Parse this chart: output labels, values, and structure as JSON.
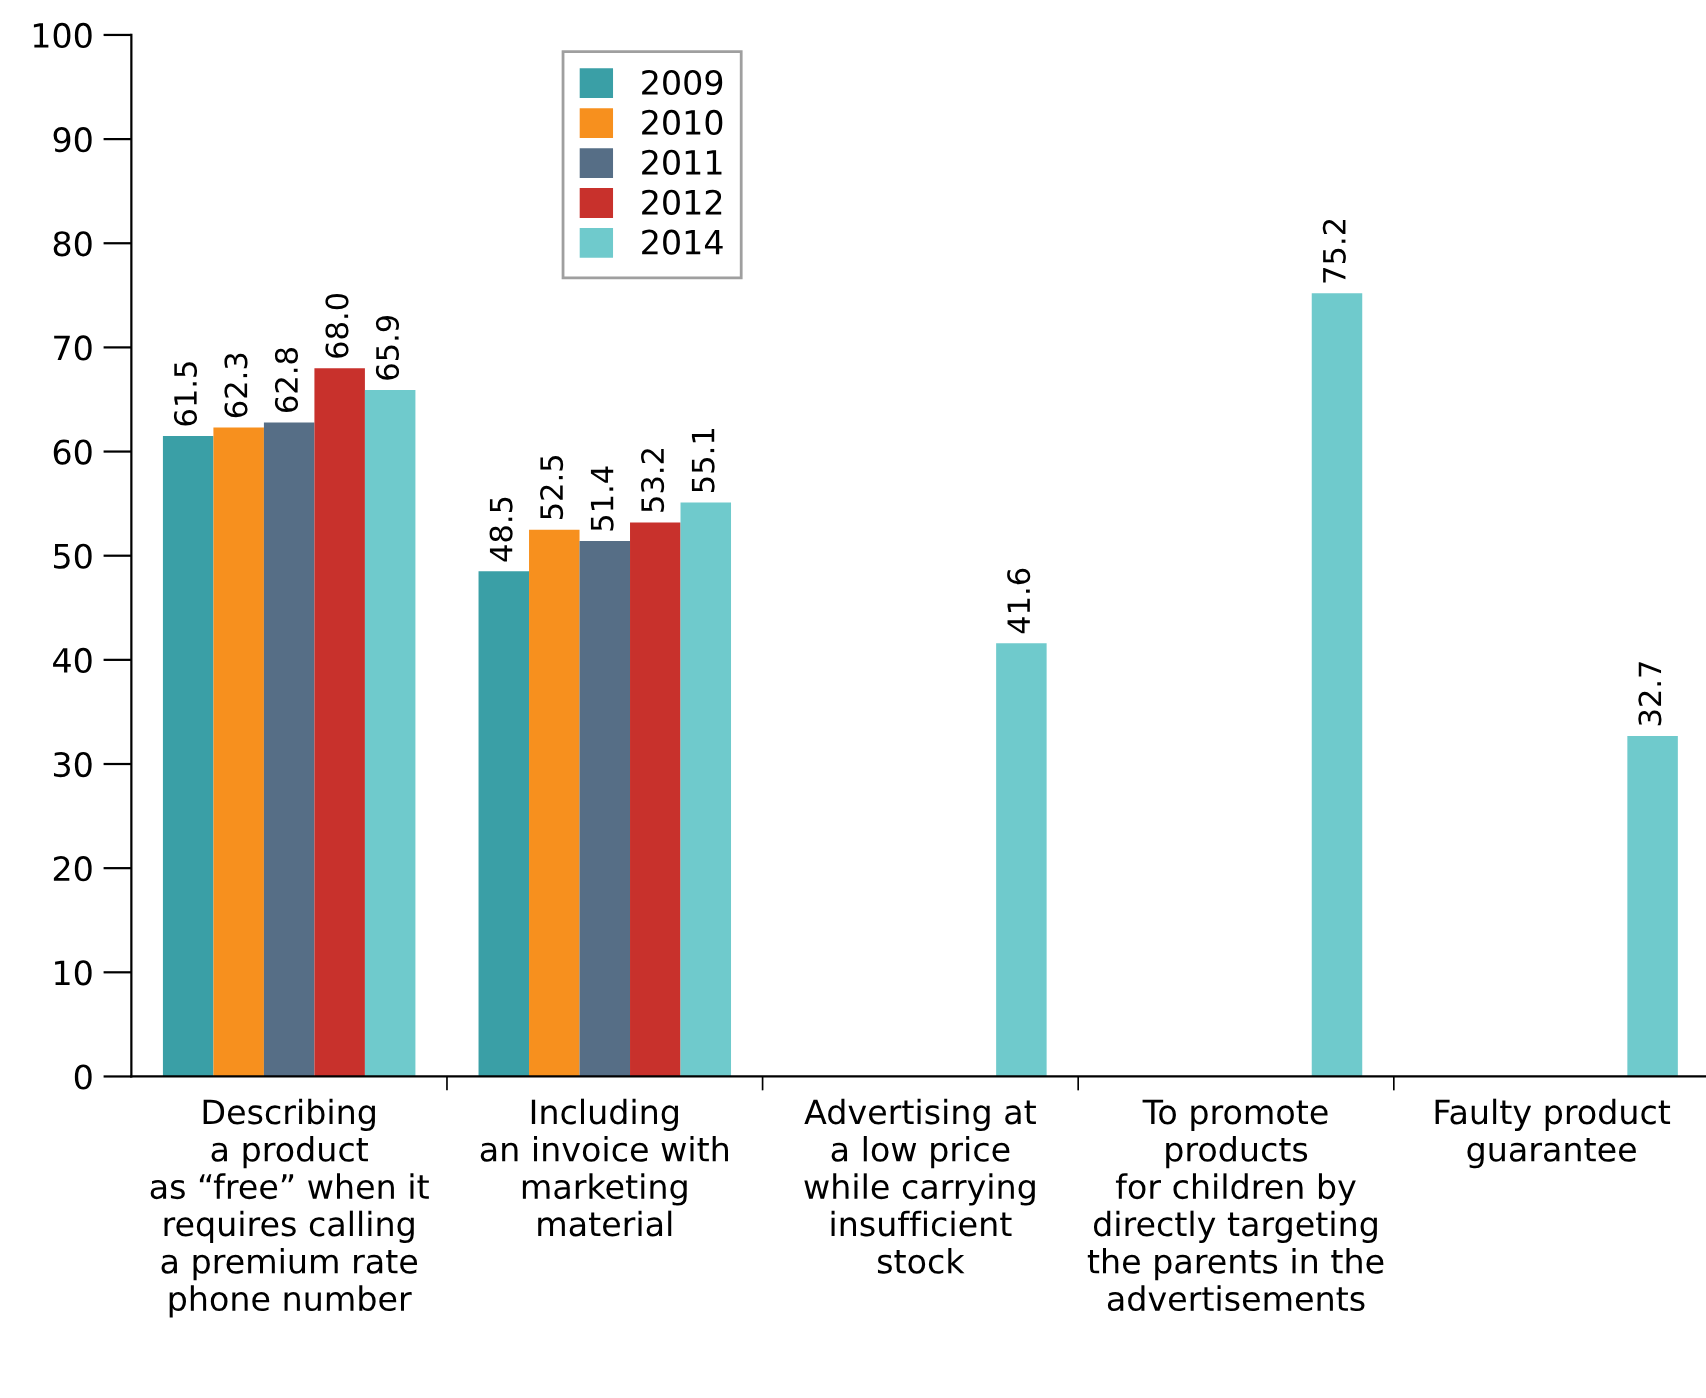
{
  "chart_data": {
    "type": "bar",
    "categories": [
      "Describing\na product\nas “free” when it\nrequires calling\na premium rate\nphone number",
      "Including\nan invoice with\nmarketing\nmaterial",
      "Advertising at\na low price\nwhile carrying\ninsufficient\nstock",
      "To promote\nproducts\nfor children by\ndirectly targeting\nthe parents in the\nadvertisements",
      "Faulty product\nguarantee"
    ],
    "series": [
      {
        "name": "2009",
        "color": "#3a9fa6",
        "values": [
          61.5,
          48.5,
          null,
          null,
          null
        ]
      },
      {
        "name": "2010",
        "color": "#f7901e",
        "values": [
          62.3,
          52.5,
          null,
          null,
          null
        ]
      },
      {
        "name": "2011",
        "color": "#566e86",
        "values": [
          62.8,
          51.4,
          null,
          null,
          null
        ]
      },
      {
        "name": "2012",
        "color": "#c8312c",
        "values": [
          68.0,
          53.2,
          null,
          null,
          null
        ],
        "value_labels": [
          "68.0",
          "53.2",
          null,
          null,
          null
        ]
      },
      {
        "name": "2014",
        "color": "#6fcacc",
        "values": [
          65.9,
          55.1,
          41.6,
          75.2,
          32.7
        ]
      }
    ],
    "ylim": [
      0,
      100
    ],
    "yticks": [
      0,
      10,
      20,
      30,
      40,
      50,
      60,
      70,
      80,
      90,
      100
    ],
    "grid": false,
    "legend": "top",
    "data_labels": true
  }
}
